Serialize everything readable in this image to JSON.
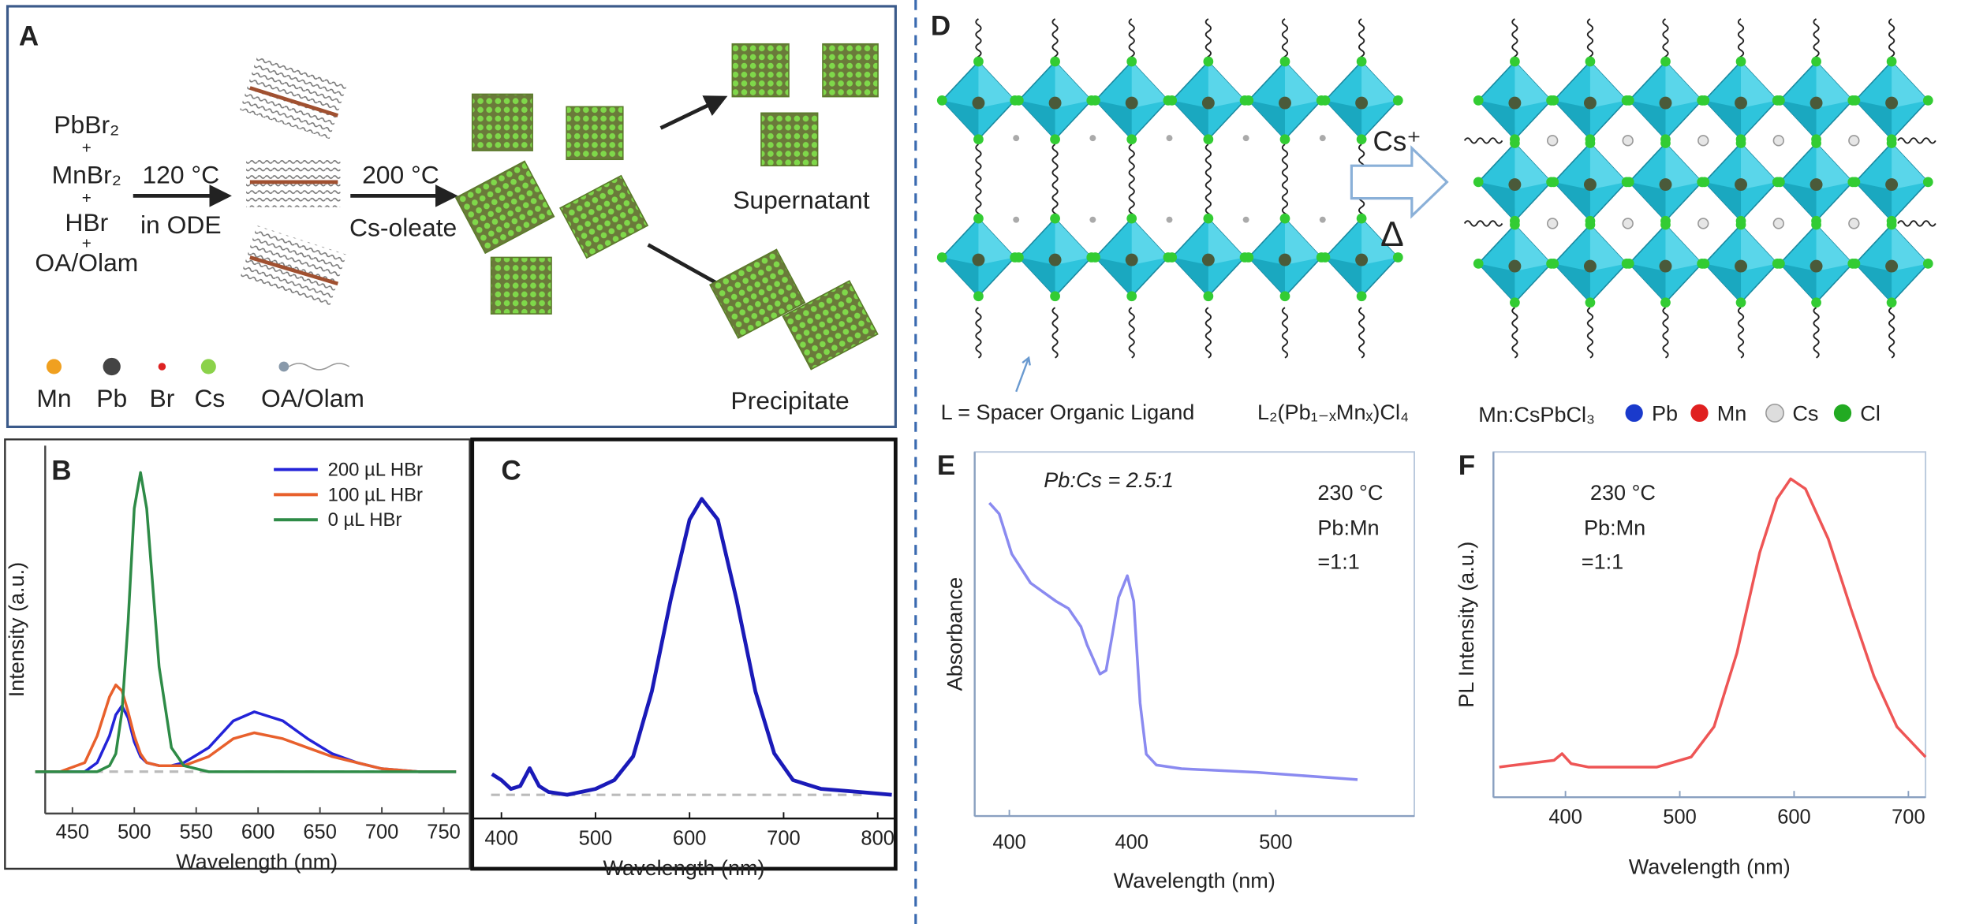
{
  "panel_a": {
    "label": "A",
    "reactants": [
      "PbBr₂",
      "+",
      "MnBr₂",
      "+",
      "HBr",
      "+",
      "OA/Olam"
    ],
    "step1": [
      "120 °C",
      "in ODE"
    ],
    "step2": [
      "200 °C",
      "Cs-oleate"
    ],
    "products": [
      "Supernatant",
      "Precipitate"
    ],
    "legend": [
      "Mn",
      "Pb",
      "Br",
      "Cs",
      "OA/Olam"
    ]
  },
  "panel_d": {
    "label": "D",
    "arrow": [
      "Cs⁺",
      "Δ"
    ],
    "captions": [
      "L = Spacer Organic Ligand",
      "L₂(Pb₁₋ₓMnₓ)Cl₄",
      "Mn:CsPbCl₃"
    ],
    "legend": [
      "Pb",
      "Mn",
      "Cs",
      "Cl"
    ]
  },
  "chart_data": [
    {
      "type": "line",
      "panel": "B",
      "xlabel": "Wavelength (nm)",
      "ylabel": "Intensity (a.u.)",
      "x": [
        420,
        440,
        460,
        470,
        480,
        485,
        490,
        495,
        500,
        505,
        510,
        520,
        530,
        540,
        560,
        580,
        597,
        620,
        640,
        660,
        680,
        700,
        730,
        760
      ],
      "series": [
        {
          "name": "200 µL HBr",
          "color": "#2323d8",
          "values": [
            0,
            0,
            0,
            0.03,
            0.12,
            0.19,
            0.22,
            0.18,
            0.1,
            0.05,
            0.03,
            0.02,
            0.02,
            0.03,
            0.08,
            0.17,
            0.2,
            0.17,
            0.11,
            0.06,
            0.03,
            0.01,
            0,
            0
          ]
        },
        {
          "name": "100 µL HBr",
          "color": "#e8602c",
          "values": [
            0,
            0,
            0.03,
            0.12,
            0.25,
            0.29,
            0.27,
            0.2,
            0.12,
            0.06,
            0.03,
            0.02,
            0.02,
            0.02,
            0.05,
            0.11,
            0.13,
            0.11,
            0.08,
            0.05,
            0.03,
            0.01,
            0,
            0
          ]
        },
        {
          "name": "0 µL HBr",
          "color": "#2e8b47",
          "values": [
            0,
            0,
            0,
            0,
            0.02,
            0.06,
            0.2,
            0.5,
            0.88,
            1.0,
            0.88,
            0.35,
            0.08,
            0.02,
            0,
            0,
            0,
            0,
            0,
            0,
            0,
            0,
            0,
            0
          ]
        }
      ],
      "xlim": [
        428,
        770
      ],
      "ylim": [
        -0.14,
        1.09
      ],
      "xticks": [
        450,
        500,
        550,
        600,
        650,
        700,
        750
      ],
      "legend": "upper right",
      "baseline": true
    },
    {
      "type": "line",
      "panel": "C",
      "xlabel": "Wavelength (nm)",
      "x": [
        390,
        400,
        410,
        420,
        430,
        440,
        450,
        470,
        500,
        520,
        540,
        560,
        580,
        600,
        613,
        630,
        650,
        670,
        690,
        710,
        740,
        780,
        815
      ],
      "series": [
        {
          "color": "#1a1ab8",
          "values": [
            0.07,
            0.05,
            0.02,
            0.03,
            0.09,
            0.03,
            0.01,
            0,
            0.02,
            0.05,
            0.13,
            0.35,
            0.66,
            0.93,
            1.0,
            0.93,
            0.66,
            0.35,
            0.14,
            0.05,
            0.02,
            0.01,
            0
          ]
        }
      ],
      "xlim": [
        369,
        819
      ],
      "ylim": [
        -0.08,
        1.18
      ],
      "xticks": [
        400,
        500,
        600,
        700,
        800
      ],
      "baseline": true
    },
    {
      "type": "line",
      "panel": "E",
      "xlabel": "Wavelength (nm)",
      "ylabel": "Absorbance",
      "x": [
        392.5,
        396.2,
        400.9,
        408,
        417.5,
        422.2,
        426.9,
        429.2,
        434,
        436.3,
        438.7,
        441,
        444.3,
        446.7,
        449.1,
        451.4,
        455.2,
        464.6,
        492.9,
        530.7
      ],
      "series": [
        {
          "color": "#8a8af0",
          "values": [
            0.86,
            0.83,
            0.72,
            0.64,
            0.59,
            0.57,
            0.52,
            0.47,
            0.39,
            0.4,
            0.5,
            0.6,
            0.66,
            0.59,
            0.31,
            0.17,
            0.14,
            0.13,
            0.12,
            0.1
          ]
        }
      ],
      "xlim": [
        387,
        552
      ],
      "ylim": [
        0,
        1
      ],
      "xticks": [
        400,
        500
      ],
      "annotations": [
        "Pb:Cs = 2.5:1",
        "230 °C",
        "Pb:Mn",
        "=1:1",
        "400"
      ]
    },
    {
      "type": "line",
      "panel": "F",
      "xlabel": "Wavelength (nm)",
      "ylabel": "PL Intensity (a.u.)",
      "x": [
        342,
        390,
        397,
        405,
        420,
        480,
        510,
        530,
        550,
        570,
        585,
        597,
        610,
        630,
        650,
        670,
        690,
        715
      ],
      "series": [
        {
          "color": "#ee5555",
          "values": [
            0.06,
            0.08,
            0.1,
            0.07,
            0.06,
            0.06,
            0.09,
            0.18,
            0.4,
            0.7,
            0.86,
            0.92,
            0.89,
            0.74,
            0.53,
            0.33,
            0.18,
            0.09
          ]
        }
      ],
      "xlim": [
        337,
        715
      ],
      "ylim": [
        -0.03,
        1
      ],
      "xticks": [
        400,
        500,
        600,
        700
      ],
      "annotations": [
        "230 °C",
        "Pb:Mn",
        "=1:1"
      ]
    }
  ]
}
